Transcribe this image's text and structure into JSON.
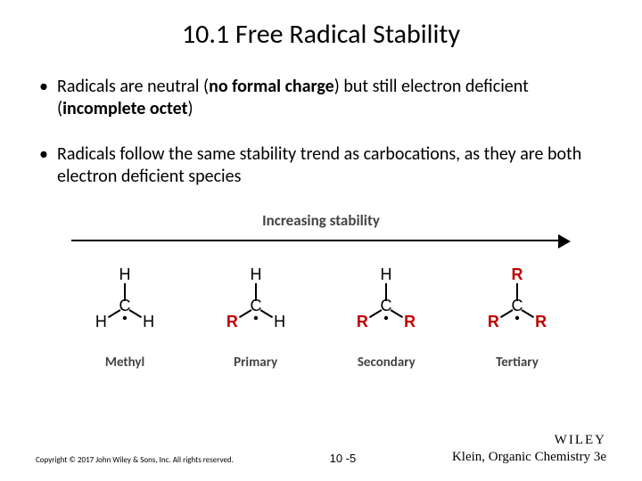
{
  "title": "10.1 Free Radical Stability",
  "bullets": [
    {
      "pre": "Radicals are neutral (",
      "b1": "no formal charge",
      "mid": ") but still electron deficient (",
      "b2": "incomplete octet",
      "post": ")"
    },
    {
      "text": "Radicals follow the same stability trend as carbocations, as they are both electron deficient species"
    }
  ],
  "diagram": {
    "arrow_label": "Increasing stability",
    "colors": {
      "H": "#000000",
      "R": "#c00000",
      "bond": "#000000",
      "dot": "#000000"
    },
    "structures": [
      {
        "label": "Methyl",
        "top": "H",
        "left": "H",
        "right": "H"
      },
      {
        "label": "Primary",
        "top": "H",
        "left": "R",
        "right": "H"
      },
      {
        "label": "Secondary",
        "top": "H",
        "left": "R",
        "right": "R"
      },
      {
        "label": "Tertiary",
        "top": "R",
        "left": "R",
        "right": "R"
      }
    ]
  },
  "footer": {
    "copyright": "Copyright © 2017 John Wiley & Sons, Inc. All rights reserved.",
    "page": "10 -5",
    "brand": "WILEY",
    "book": "Klein, Organic Chemistry 3e"
  }
}
